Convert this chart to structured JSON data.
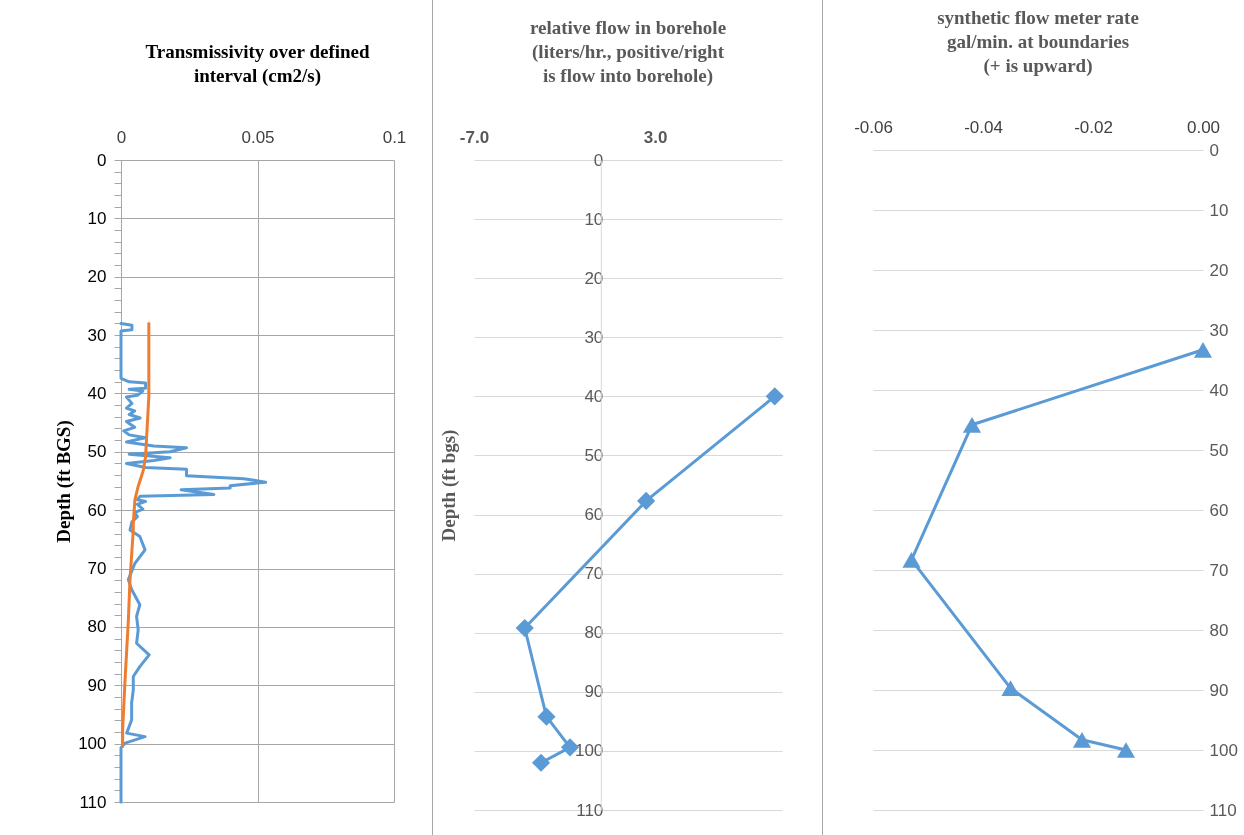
{
  "chart_data": [
    {
      "type": "line",
      "title": "Transmissivity  over defined\ninterval (cm2/s)",
      "ylabel": "Depth (ft BGS)",
      "xlim": [
        0,
        0.1
      ],
      "xticks": [
        0,
        0.05,
        0.1
      ],
      "ylim": [
        110,
        0
      ],
      "yticks": [
        0,
        {
          "value": 2,
          "label": null
        },
        {
          "value": 4,
          "label": null
        },
        {
          "value": 6,
          "label": null
        },
        {
          "value": 8,
          "label": null
        },
        10,
        {
          "value": 12,
          "label": null
        },
        {
          "value": 14,
          "label": null
        },
        {
          "value": 16,
          "label": null
        },
        {
          "value": 18,
          "label": null
        },
        20,
        {
          "value": 22,
          "label": null
        },
        {
          "value": 24,
          "label": null
        },
        {
          "value": 26,
          "label": null
        },
        {
          "value": 28,
          "label": null
        },
        30,
        {
          "value": 32,
          "label": null
        },
        {
          "value": 34,
          "label": null
        },
        {
          "value": 36,
          "label": null
        },
        {
          "value": 38,
          "label": null
        },
        40,
        {
          "value": 42,
          "label": null
        },
        {
          "value": 44,
          "label": null
        },
        {
          "value": 46,
          "label": null
        },
        {
          "value": 48,
          "label": null
        },
        50,
        {
          "value": 52,
          "label": null
        },
        {
          "value": 54,
          "label": null
        },
        {
          "value": 56,
          "label": null
        },
        {
          "value": 58,
          "label": null
        },
        60,
        {
          "value": 62,
          "label": null
        },
        {
          "value": 64,
          "label": null
        },
        {
          "value": 66,
          "label": null
        },
        {
          "value": 68,
          "label": null
        },
        70,
        {
          "value": 72,
          "label": null
        },
        {
          "value": 74,
          "label": null
        },
        {
          "value": 76,
          "label": null
        },
        {
          "value": 78,
          "label": null
        },
        80,
        {
          "value": 82,
          "label": null
        },
        {
          "value": 84,
          "label": null
        },
        {
          "value": 86,
          "label": null
        },
        {
          "value": 88,
          "label": null
        },
        90,
        {
          "value": 92,
          "label": null
        },
        {
          "value": 94,
          "label": null
        },
        {
          "value": 96,
          "label": null
        },
        {
          "value": 98,
          "label": null
        },
        100,
        {
          "value": 102,
          "label": null
        },
        {
          "value": 104,
          "label": null
        },
        {
          "value": 106,
          "label": null
        },
        {
          "value": 108,
          "label": null
        },
        110
      ],
      "grid": true,
      "series": [
        {
          "color": "#5b9bd5",
          "x": [
            0,
            0.004,
            0.004,
            0,
            0,
            0.003,
            0.009,
            0.009,
            0.003,
            0.008,
            0.006,
            0.002,
            0.004,
            0.002,
            0.005,
            0.003,
            0.007,
            0.002,
            0.005,
            0.001,
            0.003,
            0.009,
            0.002,
            0.012,
            0.024,
            0.018,
            0.003,
            0.018,
            0.012,
            0.002,
            0.009,
            0.024,
            0.024,
            0.045,
            0.053,
            0.04,
            0.04,
            0.022,
            0.034,
            0.007,
            0.006,
            0.009,
            0.006,
            0.008,
            0.005,
            0.006,
            0.004,
            0.0033,
            0.0069,
            0.0088,
            0.0051,
            0.0027,
            0.0039,
            0.0069,
            0.0057,
            0.0063,
            0.0057,
            0.0103,
            0.0069,
            0.0045,
            0.0045,
            0.0039,
            0.0039,
            0.0021,
            0.0088,
            0.0015,
            0,
            0
          ],
          "values": [
            28.0,
            28.3,
            29.1,
            29.3,
            37.4,
            38.0,
            38.2,
            39.1,
            39.3,
            39.6,
            40.3,
            40.6,
            41.7,
            42.5,
            43.0,
            43.6,
            44.2,
            44.8,
            45.8,
            46.4,
            47.1,
            47.6,
            48.3,
            49.0,
            49.3,
            50.0,
            50.4,
            51.0,
            51.5,
            52.0,
            52.7,
            53.0,
            54.1,
            54.6,
            55.2,
            55.8,
            56.2,
            56.5,
            57.3,
            57.6,
            58.2,
            58.5,
            59.0,
            59.8,
            60.4,
            61.1,
            62.0,
            63.4,
            64.5,
            66.8,
            69.1,
            71.9,
            73.6,
            76.2,
            78.2,
            80.5,
            82.8,
            84.8,
            86.8,
            88.5,
            90.8,
            93.0,
            95.9,
            98.2,
            98.8,
            99.9,
            100.7,
            110
          ]
        },
        {
          "color": "#ed7d31",
          "x": [
            0.0102,
            0.0102,
            0.0094,
            0.009,
            0.0082,
            0.0075,
            0.0063,
            0.0051,
            0.0045,
            0.0045,
            0.0033,
            0.0027,
            0.0015,
            0.0006,
            0.0006
          ],
          "values": [
            28.0,
            40.5,
            47.4,
            50.8,
            53.1,
            54.2,
            55.9,
            58.2,
            62.2,
            63.4,
            71.9,
            78.8,
            89.0,
            97.6,
            100.5
          ]
        }
      ]
    },
    {
      "type": "line",
      "title": "relative flow in borehole\n(liters/hr.,  positive/right\nis flow into borehole)",
      "ylabel": "Depth (ft bgs)",
      "xlim": [
        -7,
        10
      ],
      "xticks": [
        {
          "value": -7,
          "label": "-7.0"
        },
        {
          "value": 3,
          "label": "3.0"
        }
      ],
      "ylim": [
        110,
        0
      ],
      "yticks": [
        0,
        10,
        20,
        30,
        40,
        50,
        60,
        70,
        80,
        90,
        100,
        110
      ],
      "grid": "y",
      "marker": "diamond",
      "series": [
        {
          "color": "#5b9bd5",
          "x": [
            9.6,
            2.5,
            -4.2,
            -3.0,
            -1.7,
            -3.3
          ],
          "values": [
            40,
            57.7,
            79.2,
            94.2,
            99.4,
            102
          ]
        }
      ]
    },
    {
      "type": "line",
      "title": "synthetic flow meter rate\ngal/min. at boundaries\n(+ is upward)",
      "xlim": [
        -0.06,
        0
      ],
      "xticks": [
        {
          "value": -0.06,
          "label": "-0.06"
        },
        {
          "value": -0.04,
          "label": "-0.04"
        },
        {
          "value": -0.02,
          "label": "-0.02"
        },
        {
          "value": 0,
          "label": "0.00"
        }
      ],
      "ylim": [
        110,
        0
      ],
      "yticks": [
        0,
        10,
        20,
        30,
        40,
        50,
        60,
        70,
        80,
        90,
        100,
        110
      ],
      "grid": "y",
      "marker": "triangle",
      "series": [
        {
          "color": "#5b9bd5",
          "x": [
            0,
            -0.042,
            -0.053,
            -0.035,
            -0.022,
            -0.014
          ],
          "values": [
            33.3,
            45.8,
            68.3,
            89.7,
            98.3,
            100
          ]
        }
      ]
    }
  ]
}
